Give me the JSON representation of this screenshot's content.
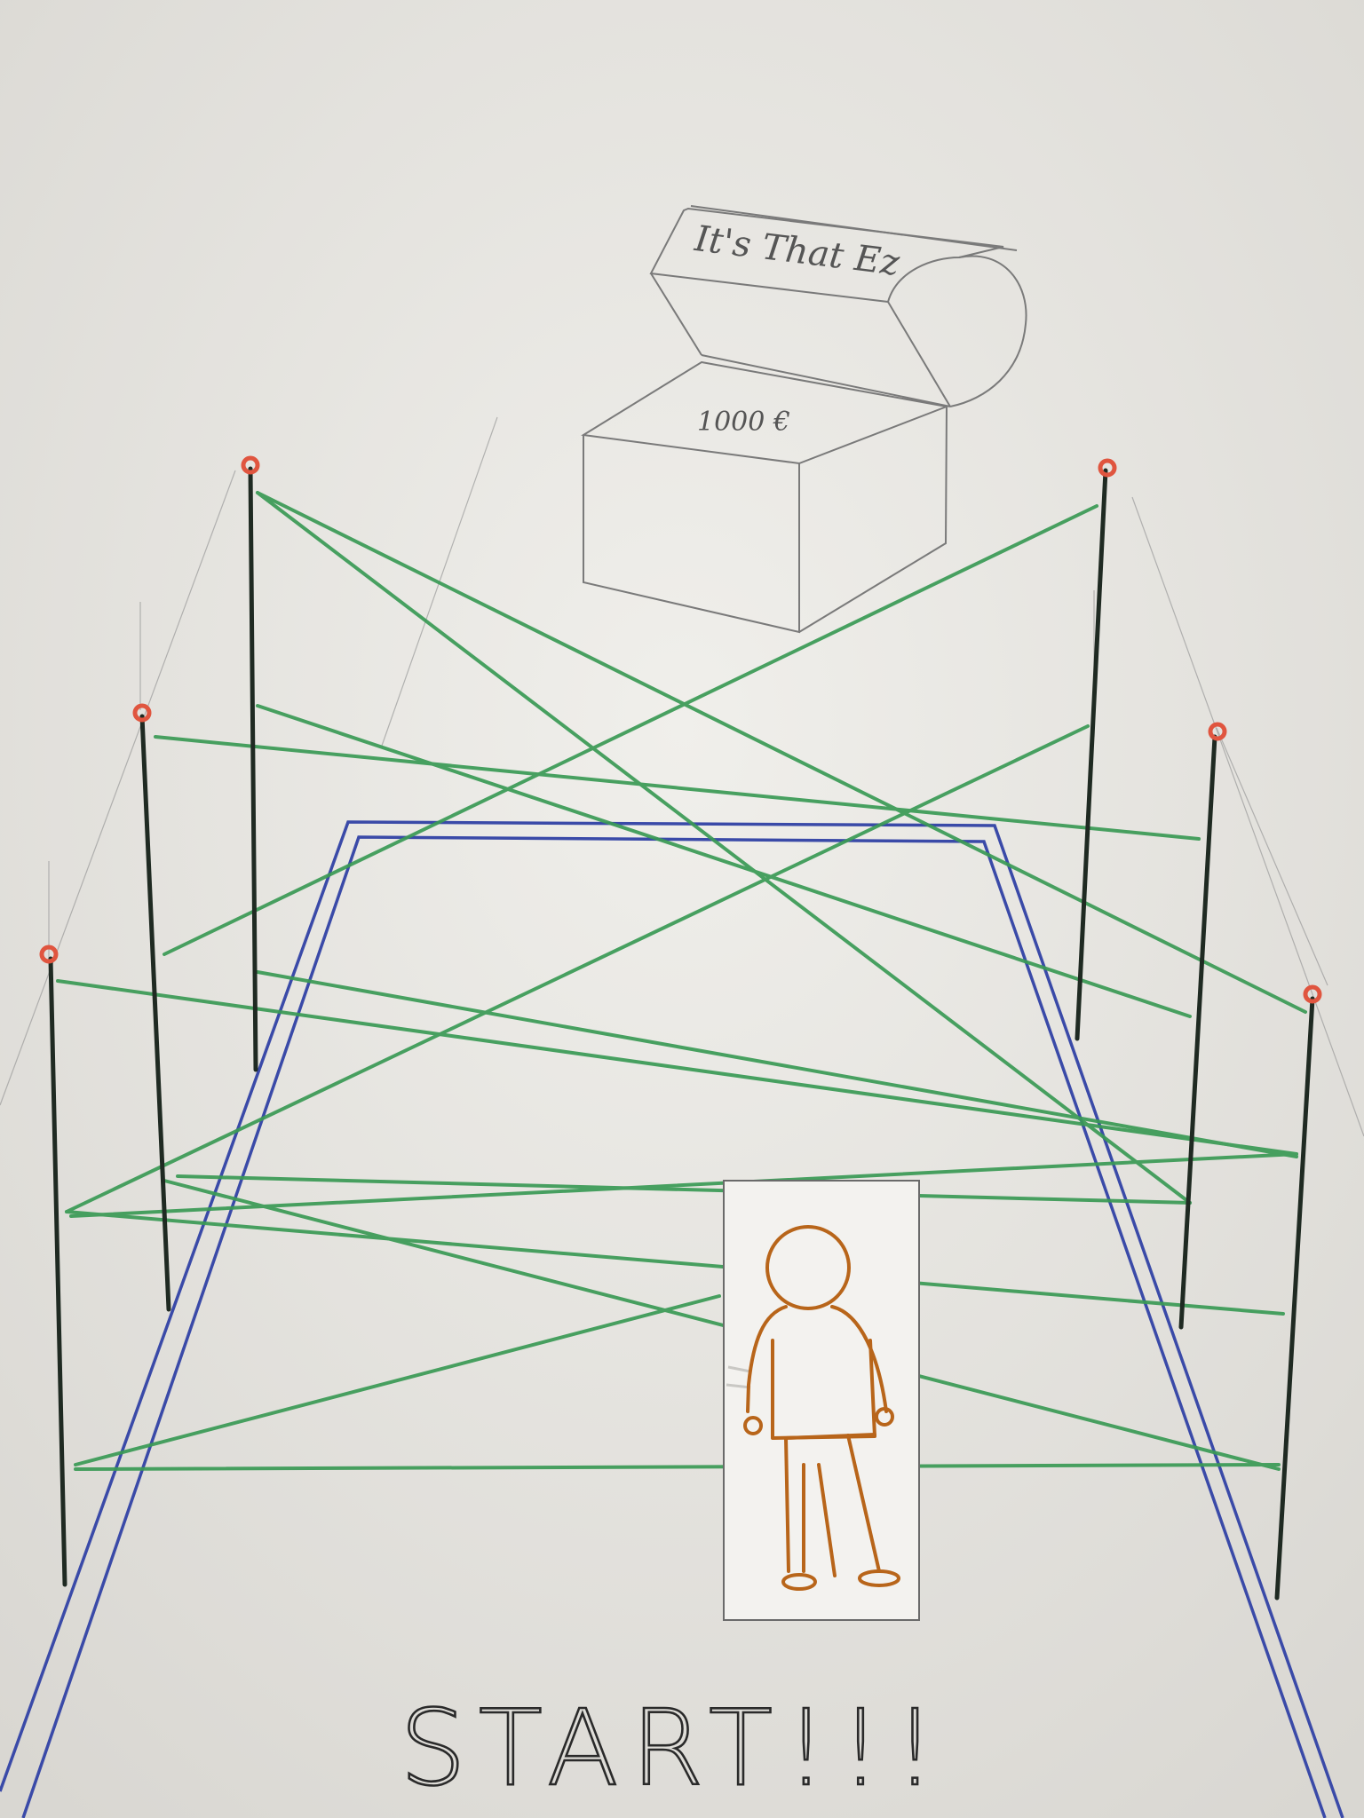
{
  "drawing": {
    "chest_lid_text": "It's That Ez",
    "chest_body_text": "1000 €",
    "start_text": "START!!!"
  },
  "colors": {
    "paper": "#e9e7e3",
    "pencil": "#8a8a8a",
    "laser": "#3a9a55",
    "pole": "#1f2a22",
    "pole_cap": "#e0553f",
    "path": "#3a4aa8",
    "figure": "#b8651a",
    "figure_card": "#f3f2ef"
  },
  "icons": {
    "chest": "treasure-chest-icon",
    "figure": "stick-figure-icon",
    "pole": "laser-pole-icon"
  }
}
